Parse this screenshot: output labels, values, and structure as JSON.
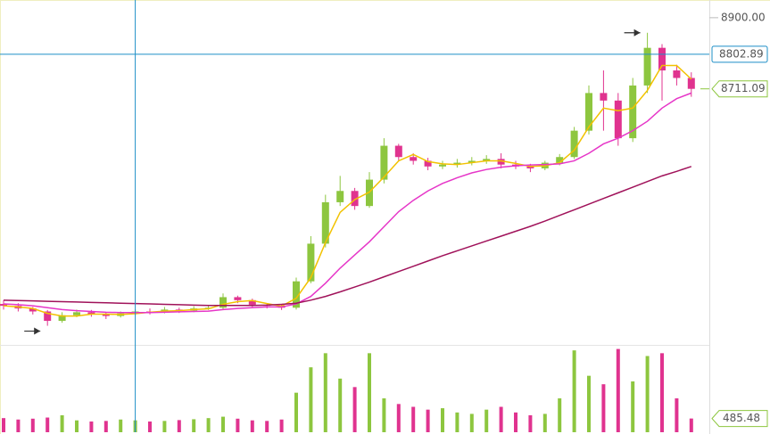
{
  "chart_data": {
    "type": "candlestick",
    "ylim": [
      8036,
      8947
    ],
    "yticks": [
      {
        "value": 8900,
        "label": "8900.00"
      }
    ],
    "volume_ylim": [
      0,
      3000
    ],
    "up_color": "#8dc63f",
    "down_color": "#e0338f",
    "crosshair": {
      "index": 9,
      "price": 8802.89,
      "color": "#1e8fc6"
    },
    "open": [
      8140,
      8135,
      8128,
      8120,
      8095,
      8110,
      8118,
      8112,
      8108,
      8115,
      8120,
      8118,
      8125,
      8122,
      8128,
      8130,
      8158,
      8150,
      8138,
      8135,
      8130,
      8200,
      8300,
      8410,
      8440,
      8400,
      8470,
      8560,
      8530,
      8520,
      8505,
      8510,
      8515,
      8520,
      8525,
      8510,
      8505,
      8500,
      8515,
      8530,
      8600,
      8700,
      8680,
      8580,
      8720,
      8820,
      8760,
      8740
    ],
    "high": [
      8150,
      8142,
      8132,
      8124,
      8118,
      8125,
      8124,
      8118,
      8120,
      8126,
      8128,
      8132,
      8130,
      8134,
      8136,
      8168,
      8162,
      8154,
      8142,
      8140,
      8210,
      8320,
      8430,
      8480,
      8448,
      8490,
      8580,
      8565,
      8540,
      8528,
      8520,
      8525,
      8530,
      8535,
      8540,
      8520,
      8512,
      8520,
      8538,
      8610,
      8720,
      8760,
      8700,
      8740,
      8860,
      8830,
      8775,
      8755
    ],
    "low": [
      8125,
      8120,
      8112,
      8082,
      8090,
      8105,
      8106,
      8100,
      8104,
      8110,
      8112,
      8115,
      8116,
      8118,
      8124,
      8125,
      8142,
      8132,
      8128,
      8124,
      8125,
      8195,
      8290,
      8400,
      8390,
      8395,
      8460,
      8520,
      8510,
      8495,
      8498,
      8502,
      8508,
      8512,
      8500,
      8498,
      8490,
      8495,
      8508,
      8525,
      8590,
      8600,
      8560,
      8570,
      8700,
      8680,
      8720,
      8690
    ],
    "close": [
      8135,
      8128,
      8120,
      8095,
      8110,
      8118,
      8112,
      8108,
      8115,
      8120,
      8118,
      8125,
      8122,
      8128,
      8130,
      8158,
      8150,
      8138,
      8135,
      8130,
      8200,
      8300,
      8410,
      8440,
      8400,
      8470,
      8560,
      8530,
      8520,
      8505,
      8510,
      8515,
      8520,
      8525,
      8510,
      8505,
      8500,
      8515,
      8530,
      8600,
      8700,
      8680,
      8580,
      8720,
      8820,
      8760,
      8740,
      8711.09
    ],
    "volume": [
      500,
      450,
      480,
      520,
      600,
      420,
      380,
      400,
      450,
      420,
      380,
      400,
      430,
      460,
      500,
      550,
      480,
      420,
      400,
      450,
      1400,
      2300,
      2800,
      1900,
      1600,
      2800,
      1200,
      1000,
      900,
      800,
      850,
      700,
      650,
      800,
      900,
      700,
      600,
      650,
      1200,
      2900,
      2000,
      1700,
      2950,
      1800,
      2700,
      2800,
      1200,
      485.48
    ],
    "series": [
      {
        "color": "#f2c200",
        "values": [
          8135,
          8132,
          8128,
          8115,
          8108,
          8108,
          8113,
          8113,
          8112,
          8114,
          8118,
          8121,
          8122,
          8125,
          8127,
          8139,
          8146,
          8149,
          8141,
          8134,
          8155,
          8210,
          8303,
          8383,
          8417,
          8437,
          8477,
          8520,
          8537,
          8518,
          8512,
          8510,
          8515,
          8520,
          8520,
          8513,
          8505,
          8507,
          8515,
          8548,
          8610,
          8660,
          8653,
          8660,
          8707,
          8773,
          8773,
          8737
        ]
      },
      {
        "color": "#e636c8",
        "values": [
          8140,
          8138,
          8135,
          8130,
          8125,
          8122,
          8120,
          8118,
          8117,
          8117,
          8117,
          8118,
          8119,
          8120,
          8121,
          8125,
          8128,
          8130,
          8132,
          8132,
          8140,
          8160,
          8195,
          8235,
          8270,
          8305,
          8345,
          8385,
          8415,
          8440,
          8460,
          8475,
          8488,
          8497,
          8503,
          8507,
          8509,
          8510,
          8512,
          8520,
          8540,
          8565,
          8580,
          8600,
          8625,
          8660,
          8685,
          8700
        ]
      },
      {
        "color": "#a0125a",
        "values": [
          8150,
          8149,
          8148,
          8147,
          8146,
          8145,
          8144,
          8143,
          8142,
          8141,
          8140,
          8139,
          8138,
          8137,
          8136,
          8136,
          8136,
          8136,
          8137,
          8139,
          8142,
          8150,
          8160,
          8172,
          8185,
          8198,
          8212,
          8226,
          8240,
          8254,
          8268,
          8281,
          8294,
          8307,
          8320,
          8333,
          8346,
          8360,
          8375,
          8390,
          8405,
          8420,
          8435,
          8450,
          8465,
          8480,
          8492,
          8505
        ]
      }
    ]
  }
}
